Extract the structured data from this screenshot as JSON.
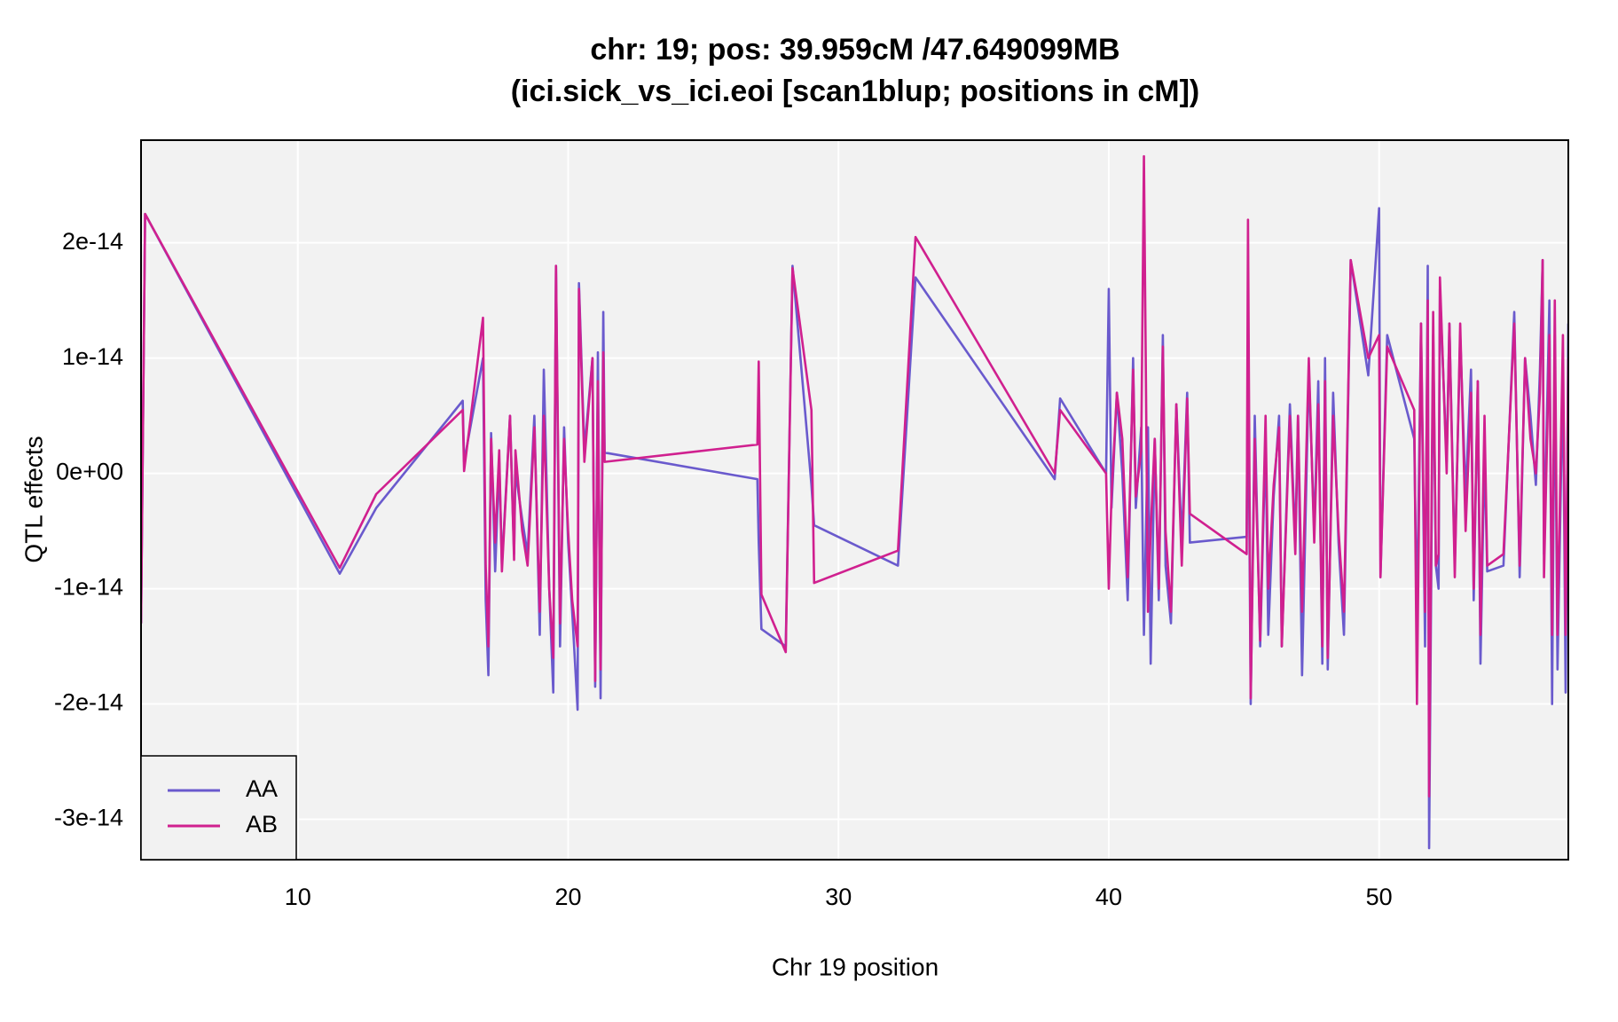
{
  "chart_data": {
    "type": "line",
    "title": "chr: 19; pos: 39.959cM /47.649099MB",
    "subtitle": "(ici.sick_vs_ici.eoi [scan1blup; positions in cM])",
    "x_label": "Chr 19 position",
    "y_label": "QTL effects",
    "xlim": [
      4.2,
      57.0
    ],
    "ylim": [
      -3.35e-14,
      2.89e-14
    ],
    "xticks": [
      10,
      20,
      30,
      40,
      50
    ],
    "yticks": [
      -3e-14,
      -2e-14,
      -1e-14,
      {
        "value": 0,
        "label": "0e+00"
      },
      1e-14,
      2e-14
    ],
    "grid": true,
    "legend": "bottom-left",
    "x": [
      4.2,
      4.35,
      11.55,
      12.9,
      16.1,
      16.15,
      16.85,
      16.95,
      17.05,
      17.15,
      17.3,
      17.45,
      17.55,
      17.85,
      18.0,
      18.05,
      18.3,
      18.5,
      18.75,
      18.95,
      19.1,
      19.3,
      19.45,
      19.55,
      19.7,
      19.85,
      20.0,
      20.15,
      20.35,
      20.4,
      20.6,
      20.9,
      21.0,
      21.1,
      21.2,
      21.3,
      21.35,
      27.0,
      27.05,
      27.15,
      28.05,
      28.3,
      29.0,
      29.1,
      32.2,
      32.85,
      38.0,
      38.2,
      39.9,
      40.0,
      40.1,
      40.3,
      40.5,
      40.7,
      40.9,
      41.0,
      41.2,
      41.3,
      41.45,
      41.55,
      41.7,
      41.85,
      42.0,
      42.1,
      42.3,
      42.5,
      42.7,
      42.9,
      43.0,
      45.1,
      45.15,
      45.25,
      45.4,
      45.6,
      45.8,
      45.9,
      46.1,
      46.3,
      46.4,
      46.7,
      46.9,
      47.0,
      47.15,
      47.4,
      47.6,
      47.75,
      47.9,
      48.0,
      48.1,
      48.3,
      48.5,
      48.7,
      48.95,
      49.6,
      50.0,
      50.05,
      50.3,
      51.3,
      51.4,
      51.55,
      51.7,
      51.8,
      51.85,
      52.0,
      52.1,
      52.2,
      52.25,
      52.5,
      52.6,
      52.8,
      53.0,
      53.2,
      53.4,
      53.5,
      53.65,
      53.75,
      53.9,
      54.0,
      54.6,
      55.0,
      55.2,
      55.4,
      55.6,
      55.8,
      55.95,
      56.05,
      56.1,
      56.3,
      56.4,
      56.5,
      56.6,
      56.8,
      56.9,
      57.0
    ],
    "series": [
      {
        "name": "AA",
        "color": "#6a5acd",
        "values": [
          -1.3e-14,
          2.25e-14,
          -8.7e-15,
          -3e-15,
          6.3e-15,
          1e-15,
          1e-14,
          -1.1e-14,
          -1.75e-14,
          3.5e-15,
          -8.5e-15,
          1e-15,
          -8e-15,
          5e-15,
          -7e-15,
          2e-16,
          -4e-15,
          -7e-15,
          5e-15,
          -1.4e-14,
          9e-15,
          -1e-14,
          -1.9e-14,
          1.8e-14,
          -1.5e-14,
          4e-15,
          -6e-15,
          -1.2e-14,
          -2.05e-14,
          1.65e-14,
          2e-15,
          1e-14,
          -1.85e-14,
          1.05e-14,
          -1.95e-14,
          1.4e-14,
          1.8e-15,
          -5e-16,
          -6e-15,
          -1.35e-14,
          -1.5e-14,
          1.8e-14,
          -1e-15,
          -4.5e-15,
          -8e-15,
          1.7e-14,
          -5e-16,
          6.5e-15,
          0,
          1.6e-14,
          -3e-15,
          7e-15,
          0,
          -1.1e-14,
          1e-14,
          -3e-15,
          4e-15,
          -1.4e-14,
          4e-15,
          -1.65e-14,
          3e-15,
          -1.1e-14,
          1.2e-14,
          -8e-15,
          -1.3e-14,
          6e-15,
          -6e-15,
          7e-15,
          -6e-15,
          -5.5e-15,
          1.2e-14,
          -2e-14,
          5e-15,
          -1.5e-14,
          3e-15,
          -1.4e-14,
          -2e-15,
          5e-15,
          -1.5e-14,
          6e-15,
          -6e-15,
          5e-15,
          -1.75e-14,
          9e-15,
          -5e-15,
          8e-15,
          -1.65e-14,
          1e-14,
          -1.7e-14,
          7e-15,
          -6e-15,
          -1.4e-14,
          1.85e-14,
          8.5e-15,
          2.3e-14,
          -9e-15,
          1.2e-14,
          3e-15,
          -1.3e-14,
          1.3e-14,
          -1.5e-14,
          1.8e-14,
          -3.25e-14,
          1.2e-14,
          -8e-15,
          -1e-14,
          1.6e-14,
          1e-15,
          1.3e-14,
          -8e-15,
          1.2e-14,
          -2e-15,
          9e-15,
          -1.1e-14,
          8e-15,
          -1.65e-14,
          2e-15,
          -8.5e-15,
          -8e-15,
          1.4e-14,
          -9e-15,
          1e-14,
          5e-15,
          -1e-15,
          9e-15,
          1.85e-14,
          -7e-15,
          1.5e-14,
          -2e-14,
          1.2e-14,
          -1.7e-14,
          9e-15,
          -1.9e-14,
          1.3e-14
        ]
      },
      {
        "name": "AB",
        "color": "#d0208f",
        "values": [
          -1.3e-14,
          2.25e-14,
          -8.2e-15,
          -1.8e-15,
          5.5e-15,
          2e-16,
          1.35e-14,
          -8e-15,
          -1.5e-14,
          3e-15,
          -6e-15,
          2e-15,
          -8.5e-15,
          5e-15,
          -7.5e-15,
          2e-15,
          -5e-15,
          -8e-15,
          4e-15,
          -1.2e-14,
          5e-15,
          -1e-14,
          -1.6e-14,
          1.8e-14,
          -1.3e-14,
          3e-15,
          -5e-15,
          -1.1e-14,
          -1.5e-14,
          1.6e-14,
          1e-15,
          1e-14,
          -1.8e-14,
          8e-15,
          -1.7e-14,
          1.05e-14,
          1e-15,
          2.5e-15,
          9.7e-15,
          -1.05e-14,
          -1.55e-14,
          1.78e-14,
          5.5e-15,
          -9.5e-15,
          -6.7e-15,
          2.05e-14,
          0,
          5.5e-15,
          0,
          -1e-14,
          -2e-15,
          7e-15,
          3e-15,
          -9e-15,
          9e-15,
          -2e-15,
          2e-15,
          2.75e-14,
          -1.2e-14,
          -5e-15,
          3e-15,
          -1e-14,
          1.1e-14,
          -5e-15,
          -1.2e-14,
          6e-15,
          -8e-15,
          6.5e-15,
          -3.5e-15,
          -7e-15,
          2.2e-14,
          -1.95e-14,
          3e-15,
          -1.45e-14,
          5e-15,
          -1e-14,
          -1e-15,
          4e-15,
          -1.5e-14,
          5e-15,
          -7e-15,
          5e-15,
          -1.2e-14,
          1e-14,
          -6e-15,
          6e-15,
          -1.5e-14,
          8e-15,
          -1.6e-14,
          5e-15,
          -5e-15,
          -1.2e-14,
          1.85e-14,
          1e-14,
          1.2e-14,
          -9e-15,
          1.1e-14,
          5.5e-15,
          -2e-14,
          1.3e-14,
          -1.2e-14,
          1.5e-14,
          -2.8e-14,
          1.4e-14,
          -8e-15,
          -7e-15,
          1.7e-14,
          0,
          1.3e-14,
          -9e-15,
          1.3e-14,
          -5e-15,
          7e-15,
          -1e-14,
          8e-15,
          -1.4e-14,
          5e-15,
          -8e-15,
          -7e-15,
          1.3e-14,
          -8e-15,
          1e-14,
          3e-15,
          0,
          7e-15,
          1.85e-14,
          -9e-15,
          1.2e-14,
          -1.4e-14,
          1.5e-14,
          -1.4e-14,
          1.2e-14,
          -1.4e-14,
          1e-14
        ]
      }
    ]
  }
}
